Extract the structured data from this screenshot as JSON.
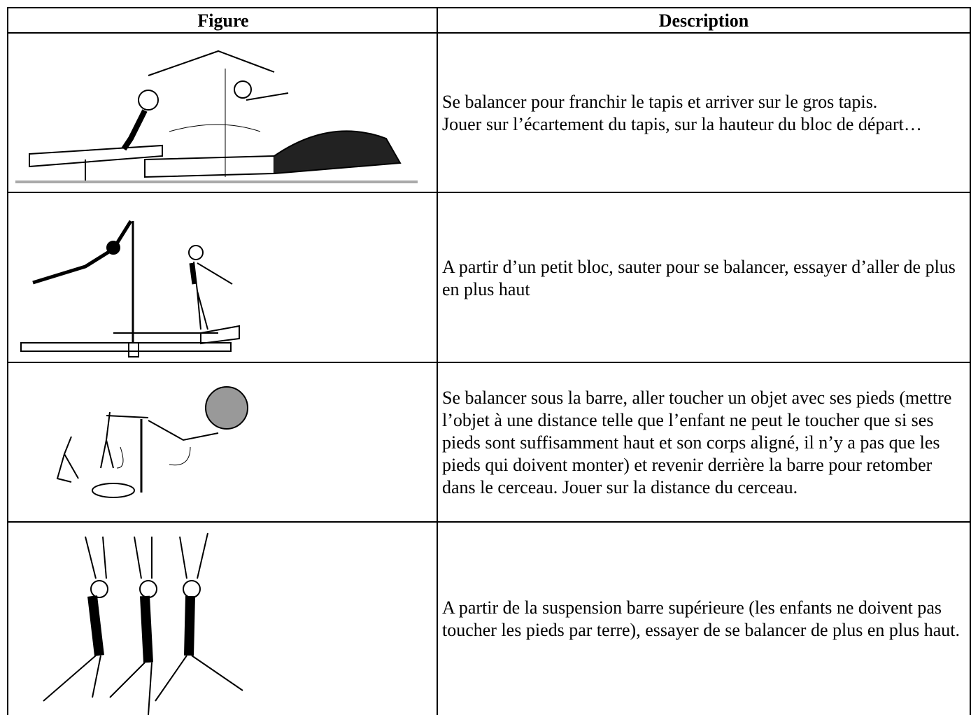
{
  "table": {
    "headers": [
      "Figure",
      "Description"
    ],
    "rows": [
      [
        "Se balancer pour franchir le tapis et arriver sur le gros tapis.",
        "Jouer sur l’écartement du tapis, sur la hauteur du bloc de départ…"
      ],
      [
        "A partir d’un petit bloc, sauter pour se balancer, essayer d’aller de plus en plus haut"
      ],
      [
        "Se balancer sous la barre, aller toucher un objet avec ses pieds (mettre l’objet à une distance telle que l’enfant ne peut le toucher que si ses pieds sont suffisamment haut et son corps aligné, il n’y a pas que les pieds qui doivent monter) et revenir derrière la barre pour retomber dans le cerceau. Jouer sur la distance du cerceau."
      ],
      [
        "A partir de la suspension barre supérieure (les enfants ne doivent pas toucher les pieds par terre), essayer de se balancer de plus en plus haut."
      ]
    ]
  }
}
